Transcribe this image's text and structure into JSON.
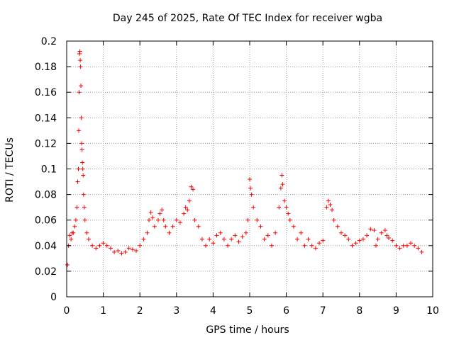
{
  "chart_data": {
    "type": "scatter",
    "title": "Day 245 of 2025, Rate Of TEC Index for receiver wgba",
    "xlabel": "GPS time / hours",
    "ylabel": "ROTI / TECUs",
    "xlim": [
      0,
      10
    ],
    "ylim": [
      0,
      0.2
    ],
    "xticks": [
      "0",
      "1",
      "2",
      "3",
      "4",
      "5",
      "6",
      "7",
      "8",
      "9",
      "10"
    ],
    "yticks": [
      "0",
      "0.02",
      "0.04",
      "0.06",
      "0.08",
      "0.1",
      "0.12",
      "0.14",
      "0.16",
      "0.18",
      "0.2"
    ],
    "grid": true,
    "marker": "+",
    "color": "#ff0000",
    "series": [
      {
        "name": "ROTI",
        "x": [
          0.02,
          0.05,
          0.08,
          0.12,
          0.15,
          0.18,
          0.22,
          0.25,
          0.28,
          0.3,
          0.32,
          0.33,
          0.34,
          0.35,
          0.36,
          0.37,
          0.38,
          0.39,
          0.4,
          0.41,
          0.42,
          0.43,
          0.44,
          0.45,
          0.46,
          0.48,
          0.5,
          0.55,
          0.6,
          0.7,
          0.8,
          0.9,
          1.0,
          1.1,
          1.2,
          1.3,
          1.4,
          1.5,
          1.6,
          1.7,
          1.8,
          1.9,
          2.0,
          2.1,
          2.2,
          2.25,
          2.3,
          2.35,
          2.4,
          2.5,
          2.55,
          2.6,
          2.65,
          2.7,
          2.8,
          2.9,
          3.0,
          3.1,
          3.2,
          3.25,
          3.3,
          3.35,
          3.4,
          3.45,
          3.5,
          3.6,
          3.7,
          3.8,
          3.9,
          4.0,
          4.1,
          4.2,
          4.3,
          4.4,
          4.5,
          4.6,
          4.7,
          4.8,
          4.9,
          4.95,
          5.0,
          5.02,
          5.05,
          5.1,
          5.2,
          5.3,
          5.4,
          5.5,
          5.6,
          5.7,
          5.8,
          5.85,
          5.88,
          5.9,
          5.95,
          6.0,
          6.05,
          6.1,
          6.2,
          6.3,
          6.4,
          6.5,
          6.6,
          6.7,
          6.8,
          6.9,
          7.0,
          7.1,
          7.15,
          7.2,
          7.25,
          7.3,
          7.4,
          7.5,
          7.6,
          7.7,
          7.8,
          7.9,
          8.0,
          8.1,
          8.2,
          8.3,
          8.4,
          8.45,
          8.5,
          8.6,
          8.7,
          8.75,
          8.8,
          8.9,
          9.0,
          9.1,
          9.2,
          9.3,
          9.4,
          9.5,
          9.6,
          9.7
        ],
        "y": [
          0.025,
          0.04,
          0.048,
          0.045,
          0.05,
          0.05,
          0.055,
          0.06,
          0.07,
          0.09,
          0.1,
          0.13,
          0.16,
          0.19,
          0.192,
          0.185,
          0.18,
          0.165,
          0.14,
          0.12,
          0.115,
          0.105,
          0.1,
          0.095,
          0.08,
          0.07,
          0.06,
          0.05,
          0.045,
          0.04,
          0.038,
          0.04,
          0.042,
          0.04,
          0.038,
          0.035,
          0.036,
          0.034,
          0.035,
          0.038,
          0.037,
          0.036,
          0.04,
          0.045,
          0.05,
          0.06,
          0.066,
          0.062,
          0.055,
          0.06,
          0.065,
          0.068,
          0.06,
          0.055,
          0.05,
          0.055,
          0.06,
          0.058,
          0.065,
          0.07,
          0.068,
          0.075,
          0.086,
          0.084,
          0.06,
          0.055,
          0.045,
          0.04,
          0.045,
          0.042,
          0.048,
          0.05,
          0.045,
          0.04,
          0.045,
          0.048,
          0.043,
          0.047,
          0.05,
          0.06,
          0.092,
          0.085,
          0.08,
          0.07,
          0.06,
          0.055,
          0.045,
          0.048,
          0.04,
          0.05,
          0.07,
          0.085,
          0.095,
          0.088,
          0.075,
          0.07,
          0.065,
          0.06,
          0.055,
          0.045,
          0.05,
          0.04,
          0.045,
          0.04,
          0.038,
          0.042,
          0.044,
          0.07,
          0.075,
          0.072,
          0.068,
          0.06,
          0.055,
          0.05,
          0.048,
          0.045,
          0.04,
          0.042,
          0.044,
          0.045,
          0.048,
          0.053,
          0.052,
          0.04,
          0.045,
          0.05,
          0.052,
          0.048,
          0.046,
          0.044,
          0.04,
          0.038,
          0.04,
          0.04,
          0.042,
          0.04,
          0.038,
          0.035
        ]
      }
    ]
  }
}
